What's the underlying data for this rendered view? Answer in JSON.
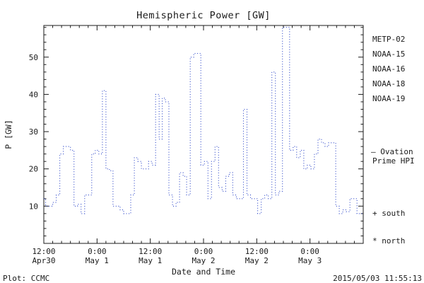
{
  "title": "Hemispheric Power [GW]",
  "footer": {
    "left": "Plot: CCMC",
    "right": "2015/05/03 11:55:13"
  },
  "legend": {
    "satellites": [
      {
        "label": "METP-02",
        "color": "#1a1a1a"
      },
      {
        "label": "NOAA-15",
        "color": "#2233cc"
      },
      {
        "label": "NOAA-16",
        "color": "#33bbdd"
      },
      {
        "label": "NOAA-18",
        "color": "#66cc88"
      },
      {
        "label": "NOAA-19",
        "color": "#ee9944"
      }
    ],
    "model_label_line1": "— Ovation",
    "model_label_line2": "Prime HPI",
    "model_color": "#2233cc",
    "south_label": "+ south",
    "north_label": "* north"
  },
  "chart_data": {
    "type": "line",
    "line_style": "dotted-step",
    "line_color": "#2a44c8",
    "grid": false,
    "legend_position": "right",
    "title": "Hemispheric Power [GW]",
    "xlabel": "Date and Time",
    "ylabel": "P [GW]",
    "ylim": [
      0,
      58.5
    ],
    "yticks": [
      10,
      20,
      30,
      40,
      50
    ],
    "y_minor_step": 2,
    "xlim_hours": [
      0,
      72
    ],
    "x_unit": "hours from first tick (12:00 Apr30)",
    "x_minor_step": 2,
    "xticks": [
      {
        "hour": 0,
        "time": "12:00",
        "date": "Apr30"
      },
      {
        "hour": 12,
        "time": "0:00",
        "date": "May 1"
      },
      {
        "hour": 24,
        "time": "12:00",
        "date": "May 1"
      },
      {
        "hour": 36,
        "time": "0:00",
        "date": "May 2"
      },
      {
        "hour": 48,
        "time": "12:00",
        "date": "May 2"
      },
      {
        "hour": 60,
        "time": "0:00",
        "date": "May 3"
      }
    ],
    "series": [
      {
        "name": "Ovation Prime HPI",
        "points": [
          [
            0,
            12
          ],
          [
            0.8,
            10
          ],
          [
            1.6,
            10
          ],
          [
            2.4,
            11
          ],
          [
            3.2,
            13
          ],
          [
            4,
            24
          ],
          [
            4.8,
            26
          ],
          [
            5.6,
            26
          ],
          [
            6.4,
            25
          ],
          [
            7.2,
            10
          ],
          [
            8,
            10.5
          ],
          [
            8.8,
            8
          ],
          [
            9.6,
            13
          ],
          [
            10.4,
            13
          ],
          [
            11.2,
            24
          ],
          [
            12,
            25
          ],
          [
            12.8,
            24
          ],
          [
            13.6,
            41
          ],
          [
            14.4,
            20
          ],
          [
            15.2,
            19.5
          ],
          [
            16,
            10
          ],
          [
            16.8,
            10
          ],
          [
            17.6,
            9
          ],
          [
            18.4,
            8
          ],
          [
            19.2,
            8
          ],
          [
            20,
            13
          ],
          [
            20.8,
            23
          ],
          [
            21.6,
            22
          ],
          [
            22.4,
            20
          ],
          [
            23.2,
            20
          ],
          [
            24,
            22
          ],
          [
            24.8,
            21
          ],
          [
            25.6,
            40
          ],
          [
            26.4,
            28
          ],
          [
            27,
            39
          ],
          [
            27.8,
            38
          ],
          [
            28.6,
            13
          ],
          [
            29.4,
            10
          ],
          [
            30.2,
            11
          ],
          [
            31,
            19
          ],
          [
            31.8,
            18
          ],
          [
            32.6,
            13
          ],
          [
            33.4,
            50
          ],
          [
            34.2,
            51
          ],
          [
            35,
            51
          ],
          [
            35.8,
            21
          ],
          [
            36.6,
            22
          ],
          [
            37.4,
            12
          ],
          [
            38.2,
            22
          ],
          [
            39,
            26
          ],
          [
            39.8,
            15
          ],
          [
            40.6,
            14
          ],
          [
            41.4,
            18
          ],
          [
            42.2,
            19
          ],
          [
            43,
            13
          ],
          [
            43.8,
            12
          ],
          [
            44.6,
            12
          ],
          [
            45.4,
            36
          ],
          [
            46.2,
            13
          ],
          [
            47,
            12
          ],
          [
            47.8,
            12
          ],
          [
            48.6,
            8
          ],
          [
            49.4,
            12
          ],
          [
            50.2,
            13
          ],
          [
            51,
            12
          ],
          [
            51.8,
            46
          ],
          [
            52.6,
            13
          ],
          [
            53.4,
            14
          ],
          [
            54.2,
            58
          ],
          [
            55,
            58
          ],
          [
            55.8,
            25
          ],
          [
            56.6,
            26
          ],
          [
            57.4,
            23
          ],
          [
            58.2,
            25
          ],
          [
            59,
            20
          ],
          [
            59.8,
            21
          ],
          [
            60.6,
            20
          ],
          [
            61.4,
            24
          ],
          [
            62.2,
            28
          ],
          [
            63,
            27
          ],
          [
            63.8,
            26
          ],
          [
            64.6,
            27
          ],
          [
            65.4,
            27
          ],
          [
            66.2,
            10
          ],
          [
            67,
            8
          ],
          [
            67.8,
            9
          ],
          [
            68.6,
            8.5
          ],
          [
            69.4,
            12
          ],
          [
            70.2,
            12
          ],
          [
            71,
            8
          ],
          [
            71.8,
            8
          ]
        ]
      }
    ]
  }
}
